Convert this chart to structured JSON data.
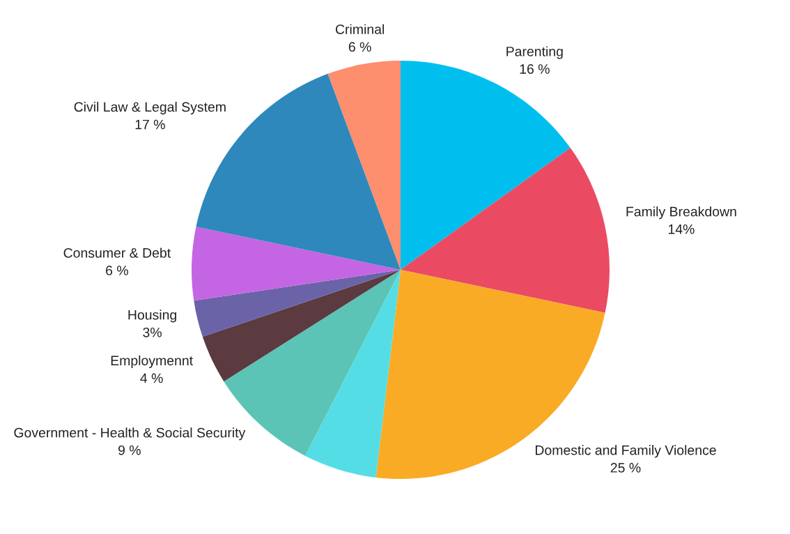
{
  "chart_data": {
    "type": "pie",
    "categories": [
      "Parenting",
      "Family Breakdown",
      "Domestic and Family Violence",
      null,
      "Government - Health & Social Security",
      "Employmennt",
      "Housing",
      "Consumer & Debt",
      "Civil Law & Legal System",
      "Criminal"
    ],
    "values": [
      16,
      14,
      25,
      6,
      9,
      4,
      3,
      6,
      17,
      6
    ],
    "value_labels": [
      "16 %",
      "14%",
      "25 %",
      null,
      "9 %",
      "4 %",
      "3%",
      "6 %",
      "17 %",
      "6 %"
    ],
    "colors": [
      "#00bfef",
      "#ea4b62",
      "#f9ab26",
      "#55dde6",
      "#5cc4b6",
      "#5b3a40",
      "#6b63a8",
      "#c466e3",
      "#2e88bb",
      "#fd8e6e"
    ],
    "legend": false
  }
}
